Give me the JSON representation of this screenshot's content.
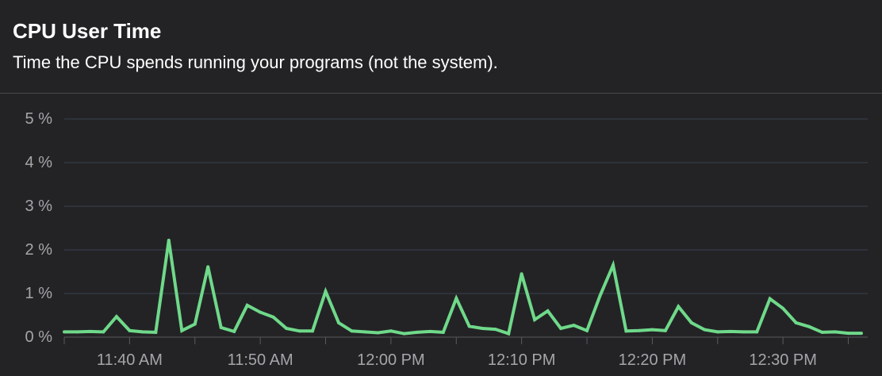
{
  "panel": {
    "title": "CPU User Time",
    "subtitle": "Time the CPU spends running your programs (not the system)."
  },
  "chart_data": {
    "type": "line",
    "title": "CPU User Time",
    "subtitle": "Time the CPU spends running your programs (not the system).",
    "xlabel": "",
    "ylabel": "",
    "ylim": [
      0,
      5
    ],
    "y_ticks": [
      "0 %",
      "1 %",
      "2 %",
      "3 %",
      "4 %",
      "5 %"
    ],
    "x_ticks": [
      "11:40 AM",
      "11:50 AM",
      "12:00 PM",
      "12:10 PM",
      "12:20 PM",
      "12:30 PM"
    ],
    "x_domain": [
      "11:35 AM",
      "12:36 PM"
    ],
    "grid": true,
    "colors": {
      "line": "#6fd98a",
      "grid": "#3a4150",
      "axis": "#5a5a60",
      "tick_text": "#a5a5aa",
      "background": "#232325"
    },
    "series": [
      {
        "values_unit": "%",
        "x": [
          "11:35",
          "11:36",
          "11:37",
          "11:38",
          "11:39",
          "11:40",
          "11:41",
          "11:42",
          "11:43",
          "11:44",
          "11:45",
          "11:46",
          "11:47",
          "11:48",
          "11:49",
          "11:50",
          "11:51",
          "11:52",
          "11:53",
          "11:54",
          "11:55",
          "11:56",
          "11:57",
          "11:58",
          "11:59",
          "12:00",
          "12:01",
          "12:02",
          "12:03",
          "12:04",
          "12:05",
          "12:06",
          "12:07",
          "12:08",
          "12:09",
          "12:10",
          "12:11",
          "12:12",
          "12:13",
          "12:14",
          "12:15",
          "12:16",
          "12:17",
          "12:18",
          "12:19",
          "12:20",
          "12:21",
          "12:22",
          "12:23",
          "12:24",
          "12:25",
          "12:26",
          "12:27",
          "12:28",
          "12:29",
          "12:30",
          "12:31",
          "12:32",
          "12:33",
          "12:34",
          "12:35",
          "12:36"
        ],
        "values": [
          0.12,
          0.12,
          0.13,
          0.12,
          0.47,
          0.15,
          0.12,
          0.11,
          2.22,
          0.15,
          0.3,
          1.61,
          0.22,
          0.13,
          0.73,
          0.57,
          0.46,
          0.2,
          0.14,
          0.14,
          1.05,
          0.33,
          0.14,
          0.12,
          0.1,
          0.14,
          0.08,
          0.11,
          0.13,
          0.11,
          0.89,
          0.25,
          0.2,
          0.18,
          0.08,
          1.45,
          0.4,
          0.6,
          0.2,
          0.27,
          0.15,
          0.95,
          1.65,
          0.14,
          0.15,
          0.17,
          0.15,
          0.7,
          0.33,
          0.17,
          0.12,
          0.13,
          0.12,
          0.12,
          0.88,
          0.66,
          0.33,
          0.24,
          0.11,
          0.12,
          0.09,
          0.09
        ]
      }
    ]
  }
}
